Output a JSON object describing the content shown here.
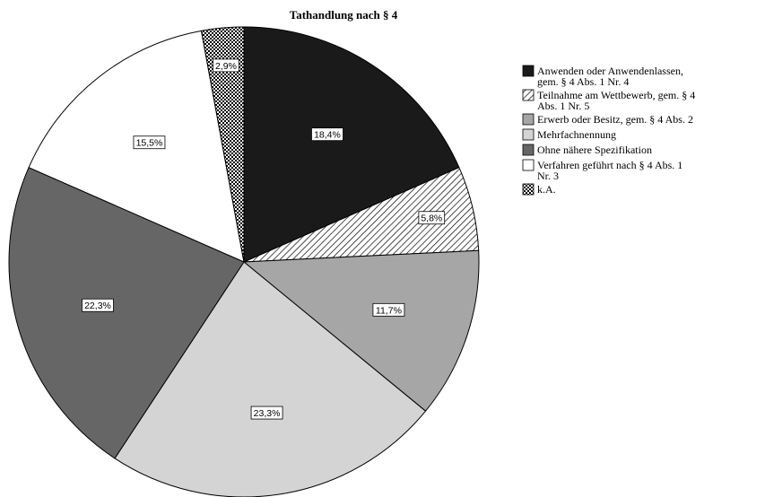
{
  "chart_data": {
    "type": "pie",
    "title": "Tathandlung nach § 4",
    "start_angle_deg": 0,
    "direction": "clockwise",
    "slices": [
      {
        "label": [
          "Anwenden oder Anwendenlassen,",
          "gem. § 4 Abs. 1 Nr. 4"
        ],
        "value": 18.4,
        "value_label": "18,4%",
        "fill": "#1a1a1a",
        "pattern": "solid"
      },
      {
        "label": [
          "Teilnahme am Wettbewerb, gem. § 4",
          "Abs. 1 Nr. 5"
        ],
        "value": 5.8,
        "value_label": "5,8%",
        "fill": "#ffffff",
        "pattern": "hatch"
      },
      {
        "label": [
          "Erwerb oder Besitz, gem. § 4 Abs. 2"
        ],
        "value": 11.7,
        "value_label": "11,7%",
        "fill": "#a6a6a6",
        "pattern": "solid"
      },
      {
        "label": [
          "Mehrfachnennung"
        ],
        "value": 23.3,
        "value_label": "23,3%",
        "fill": "#d4d4d4",
        "pattern": "solid"
      },
      {
        "label": [
          "Ohne nähere Spezifikation"
        ],
        "value": 22.3,
        "value_label": "22,3%",
        "fill": "#666666",
        "pattern": "solid"
      },
      {
        "label": [
          "Verfahren geführt nach § 4 Abs. 1",
          "Nr. 3"
        ],
        "value": 15.5,
        "value_label": "15,5%",
        "fill": "#ffffff",
        "pattern": "solid"
      },
      {
        "label": [
          "k.A."
        ],
        "value": 2.9,
        "value_label": "2,9%",
        "fill": "#ffffff",
        "pattern": "dots"
      }
    ],
    "legend_position": "right"
  }
}
